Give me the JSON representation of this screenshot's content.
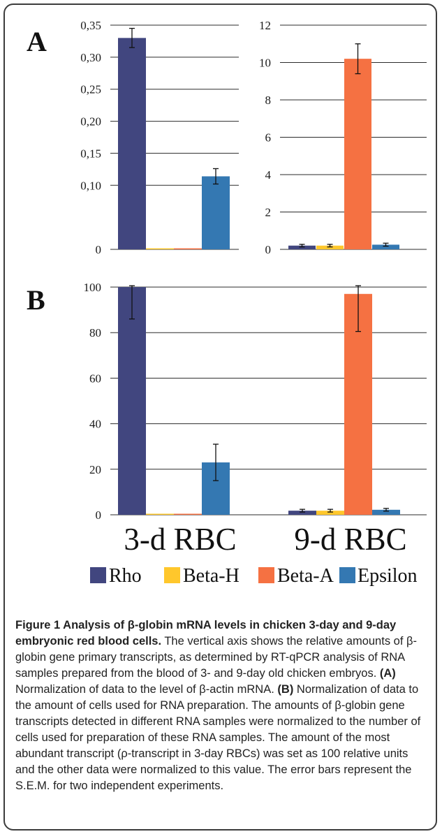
{
  "colors": {
    "Rho": "#41467f",
    "Beta-H": "#ffc72c",
    "Beta-A": "#f57142",
    "Epsilon": "#3478b2",
    "grid": "#2b2b2b"
  },
  "chart_data": [
    {
      "panel": "A",
      "type": "bar",
      "categories": [
        "3-d RBC"
      ],
      "series": [
        {
          "name": "Rho",
          "values": [
            0.33
          ],
          "errors": [
            0.015
          ]
        },
        {
          "name": "Beta-H",
          "values": [
            0.0
          ],
          "errors": [
            0
          ]
        },
        {
          "name": "Beta-A",
          "values": [
            0.0
          ],
          "errors": [
            0
          ]
        },
        {
          "name": "Epsilon",
          "values": [
            0.114
          ],
          "errors": [
            0.012
          ]
        }
      ],
      "ylim": [
        0,
        0.35
      ],
      "yticks": [
        "0",
        "0,10",
        "0,15",
        "0,20",
        "0,25",
        "0,30",
        "0,35"
      ],
      "ytick_values": [
        0,
        0.1,
        0.15,
        0.2,
        0.25,
        0.3,
        0.35
      ],
      "grid": true
    },
    {
      "panel": "A",
      "type": "bar",
      "categories": [
        "9-d RBC"
      ],
      "series": [
        {
          "name": "Rho",
          "values": [
            0.2
          ],
          "errors": [
            0.07
          ]
        },
        {
          "name": "Beta-H",
          "values": [
            0.2
          ],
          "errors": [
            0.07
          ]
        },
        {
          "name": "Beta-A",
          "values": [
            10.2
          ],
          "errors": [
            0.8
          ]
        },
        {
          "name": "Epsilon",
          "values": [
            0.25
          ],
          "errors": [
            0.08
          ]
        }
      ],
      "ylim": [
        0,
        12
      ],
      "yticks": [
        "0",
        "2",
        "4",
        "6",
        "8",
        "10",
        "12"
      ],
      "ytick_values": [
        0,
        2,
        4,
        6,
        8,
        10,
        12
      ],
      "grid": true
    },
    {
      "panel": "B",
      "type": "bar",
      "categories": [
        "3-d RBC",
        "9-d RBC"
      ],
      "series": [
        {
          "name": "Rho",
          "values": [
            100,
            1.8
          ],
          "errors": [
            14,
            0.6
          ]
        },
        {
          "name": "Beta-H",
          "values": [
            0,
            1.8
          ],
          "errors": [
            0,
            0.6
          ]
        },
        {
          "name": "Beta-A",
          "values": [
            0,
            97
          ],
          "errors": [
            0,
            16.5
          ]
        },
        {
          "name": "Epsilon",
          "values": [
            23,
            2.2
          ],
          "errors": [
            8,
            0.6
          ]
        }
      ],
      "ylim": [
        0,
        100
      ],
      "yticks": [
        "0",
        "20",
        "40",
        "60",
        "80",
        "100"
      ],
      "ytick_values": [
        0,
        20,
        40,
        60,
        80,
        100
      ],
      "grid": true,
      "legend_position": "bottom"
    }
  ],
  "panel_labels": {
    "a": "A",
    "b": "B"
  },
  "x_categories": [
    "3-d RBC",
    "9-d RBC"
  ],
  "legend": [
    "Rho",
    "Beta-H",
    "Beta-A",
    "Epsilon"
  ],
  "caption": {
    "title": "Figure 1 Analysis of β-globin mRNA levels in chicken 3-day and 9-day embryonic red blood cells.",
    "text1": " The vertical axis shows the relative amounts of β-globin gene primary transcripts, as determined by RT-qPCR analysis of RNA samples prepared from the blood of 3- and 9-day old chicken embryos. ",
    "label_a": "(A)",
    "text2": " Normalization of data to the level of β-actin mRNA. ",
    "label_b": "(B)",
    "text3": " Normalization of data to the amount of cells used for RNA preparation. The amounts of β-globin gene transcripts detected in different RNA samples were normalized to the number of cells used for preparation of these RNA samples. The amount of the most abundant transcript (ρ-transcript in 3-day RBCs) was set as 100 relative units and the other data were normalized to this value. The error bars represent the S.E.M. for two independent experiments."
  }
}
